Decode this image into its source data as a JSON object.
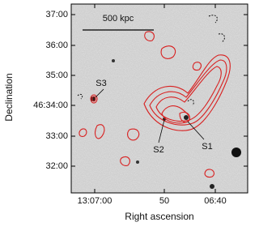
{
  "axes": {
    "x_label": "Right ascension",
    "y_label": "Declination",
    "x_ticks": [
      "13:07:00",
      "50",
      "06:40"
    ],
    "y_ticks": [
      "37:00",
      "36:00",
      "35:00",
      "46:34:00",
      "33:00",
      "32:00"
    ]
  },
  "annotations": {
    "scale_bar": "500 kpc",
    "sources": [
      "S1",
      "S2",
      "S3"
    ]
  }
}
